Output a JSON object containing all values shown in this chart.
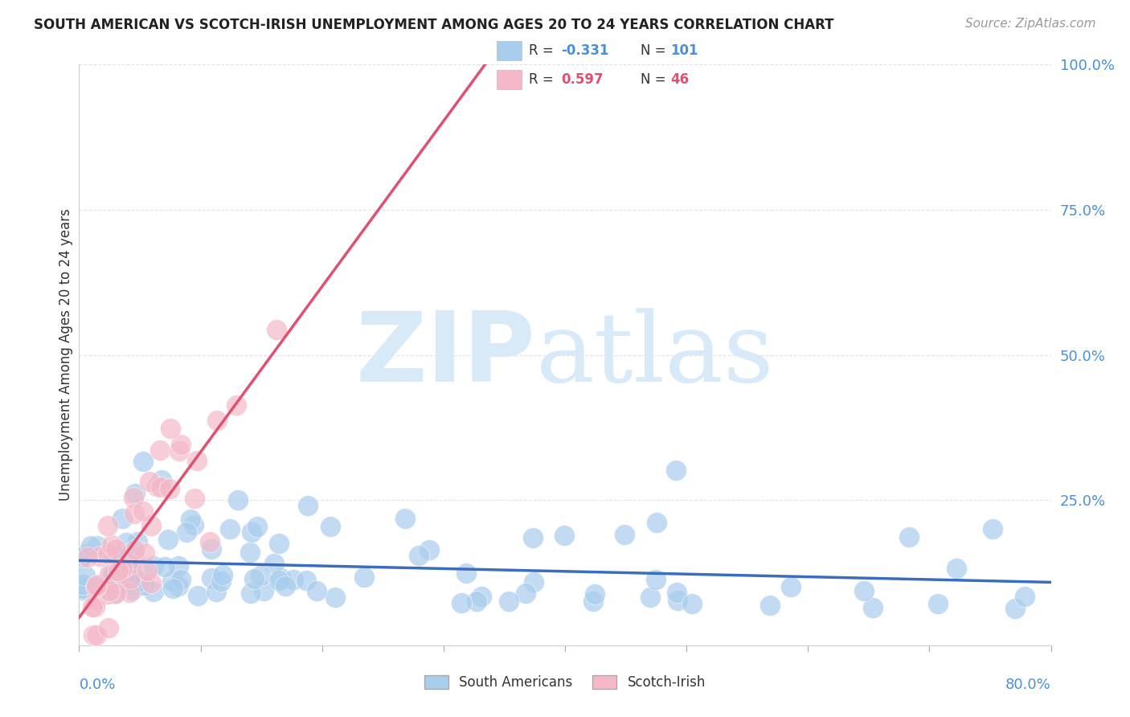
{
  "title": "SOUTH AMERICAN VS SCOTCH-IRISH UNEMPLOYMENT AMONG AGES 20 TO 24 YEARS CORRELATION CHART",
  "source": "Source: ZipAtlas.com",
  "ylabel": "Unemployment Among Ages 20 to 24 years",
  "xlim": [
    0.0,
    0.8
  ],
  "ylim": [
    0.0,
    1.0
  ],
  "yticks": [
    0.0,
    0.25,
    0.5,
    0.75,
    1.0
  ],
  "ytick_labels": [
    "",
    "25.0%",
    "50.0%",
    "75.0%",
    "100.0%"
  ],
  "xtick_left": "0.0%",
  "xtick_right": "80.0%",
  "sa_color": "#A8CDED",
  "si_color": "#F4B8C8",
  "sa_line_color": "#3B6DBF",
  "si_line_color": "#E05070",
  "sa_R": -0.331,
  "sa_N": 101,
  "si_R": 0.597,
  "si_N": 46,
  "watermark_zip": "ZIP",
  "watermark_atlas": "atlas",
  "watermark_color": "#D8EAF8",
  "background_color": "#FFFFFF",
  "grid_color": "#DDDDDD",
  "title_color": "#222222",
  "ylabel_color": "#333333",
  "tick_color": "#4A90D9",
  "legend_r_color_sa": "#4A90D9",
  "legend_r_color_si": "#E05070",
  "legend_n_color": "#4A90D9",
  "source_color": "#999999"
}
